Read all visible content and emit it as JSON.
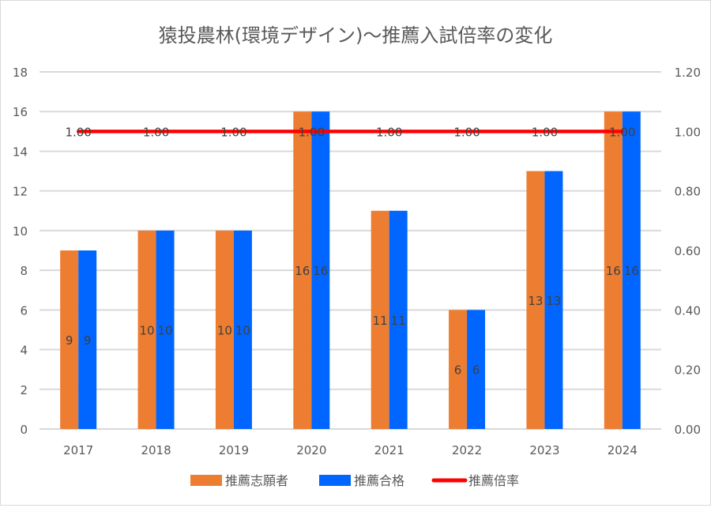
{
  "chart_data": {
    "type": "bar",
    "title": "猿投農林(環境デザイン)～推薦入試倍率の変化",
    "categories": [
      "2017",
      "2018",
      "2019",
      "2020",
      "2021",
      "2022",
      "2023",
      "2024"
    ],
    "series": [
      {
        "name": "推薦志願者",
        "kind": "bar",
        "axis": "left",
        "color": "#ED7D31",
        "values": [
          9,
          10,
          10,
          16,
          11,
          6,
          13,
          16
        ],
        "labels": [
          "9",
          "10",
          "10",
          "16",
          "11",
          "6",
          "13",
          "16"
        ]
      },
      {
        "name": "推薦合格",
        "kind": "bar",
        "axis": "left",
        "color": "#0066FF",
        "values": [
          9,
          10,
          10,
          16,
          11,
          6,
          13,
          16
        ],
        "labels": [
          "9",
          "10",
          "10",
          "16",
          "11",
          "6",
          "13",
          "16"
        ]
      },
      {
        "name": "推薦倍率",
        "kind": "line",
        "axis": "right",
        "color": "#FF0000",
        "values": [
          1.0,
          1.0,
          1.0,
          1.0,
          1.0,
          1.0,
          1.0,
          1.0
        ],
        "labels": [
          "1.00",
          "1.00",
          "1.00",
          "1.00",
          "1.00",
          "1.00",
          "1.00",
          "1.00"
        ]
      }
    ],
    "ylim": [
      0,
      18
    ],
    "y_ticks": [
      "0",
      "2",
      "4",
      "6",
      "8",
      "10",
      "12",
      "14",
      "16",
      "18"
    ],
    "y2lim": [
      0,
      1.2
    ],
    "y2_ticks": [
      "0.00",
      "0.20",
      "0.40",
      "0.60",
      "0.80",
      "1.00",
      "1.20"
    ],
    "xlabel": "",
    "ylabel": "",
    "grid": true,
    "legend": "bottom"
  }
}
